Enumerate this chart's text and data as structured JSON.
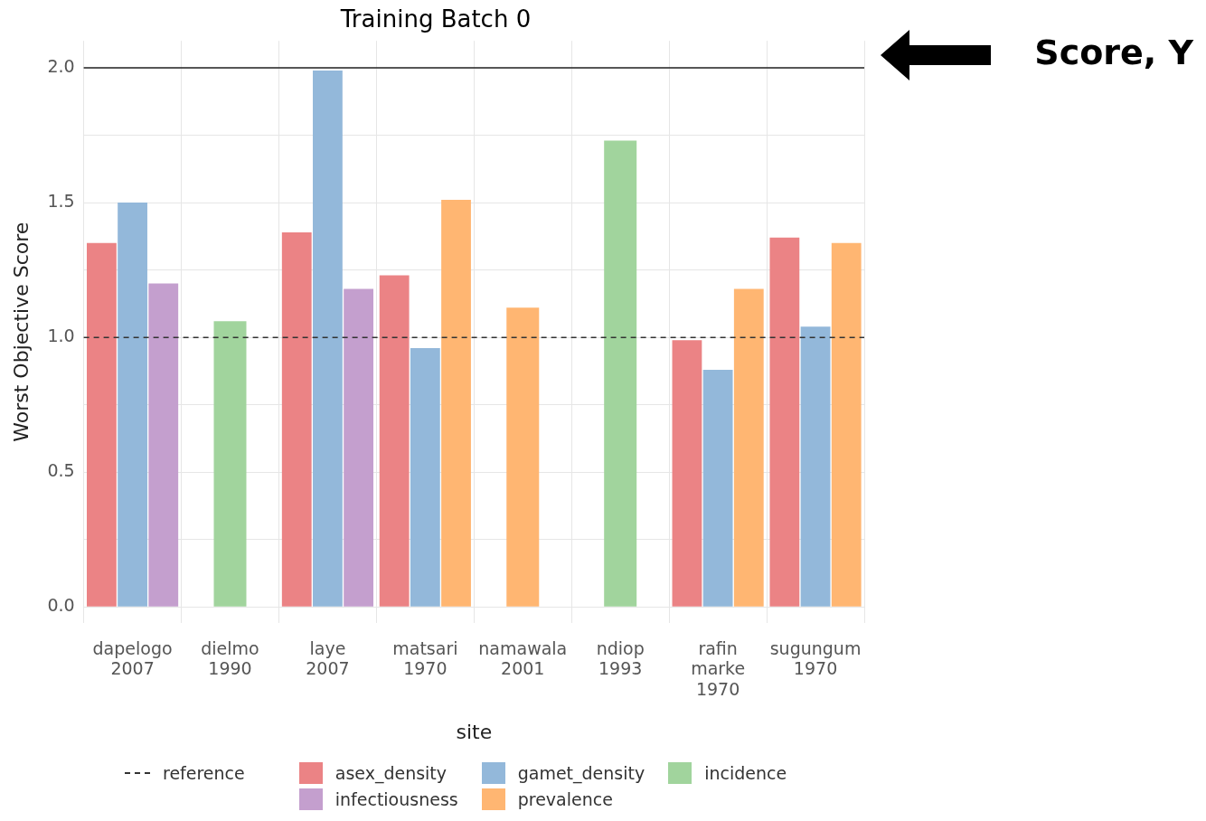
{
  "chart_data": {
    "type": "bar",
    "title": "Training Batch 0",
    "xlabel": "site",
    "ylabel": "Worst Objective Score",
    "categories": [
      "dapelogo 2007",
      "dielmo 1990",
      "laye 2007",
      "matsari 1970",
      "namawala 2001",
      "ndiop 1993",
      "rafin marke 1970",
      "sugungum 1970"
    ],
    "series": [
      {
        "name": "asex_density",
        "color": "#eb8385",
        "values": [
          1.35,
          null,
          1.39,
          1.23,
          null,
          null,
          0.99,
          1.37
        ]
      },
      {
        "name": "gamet_density",
        "color": "#93b8da",
        "values": [
          1.5,
          null,
          1.99,
          0.96,
          null,
          null,
          0.88,
          1.04
        ]
      },
      {
        "name": "incidence",
        "color": "#a1d49d",
        "values": [
          null,
          1.06,
          null,
          null,
          null,
          1.73,
          null,
          null
        ]
      },
      {
        "name": "infectiousness",
        "color": "#c49fce",
        "values": [
          1.2,
          null,
          1.18,
          null,
          null,
          null,
          null,
          null
        ]
      },
      {
        "name": "prevalence",
        "color": "#ffb672",
        "values": [
          null,
          null,
          null,
          1.51,
          1.11,
          null,
          1.18,
          1.35
        ]
      }
    ],
    "ylim": [
      -0.06,
      2.1
    ],
    "yticks": [
      {
        "value": 0,
        "label": "0.0"
      },
      {
        "value": 0.25,
        "label": null
      },
      0.5,
      {
        "value": 0.75,
        "label": null
      },
      {
        "value": 1,
        "label": "1.0"
      },
      {
        "value": 1.25,
        "label": null
      },
      1.5,
      {
        "value": 1.75,
        "label": null
      },
      {
        "value": 2,
        "label": "2.0"
      }
    ],
    "grid": true,
    "legend": "bottom",
    "ref_lines": [
      {
        "axis": "y",
        "value": 1.0,
        "label": "reference",
        "line_style": "dashed",
        "color": "#333333"
      },
      {
        "axis": "y",
        "value": 2.0,
        "color": "#222222",
        "line_style": "solid"
      }
    ],
    "annotations": [
      "Score, Y"
    ]
  }
}
